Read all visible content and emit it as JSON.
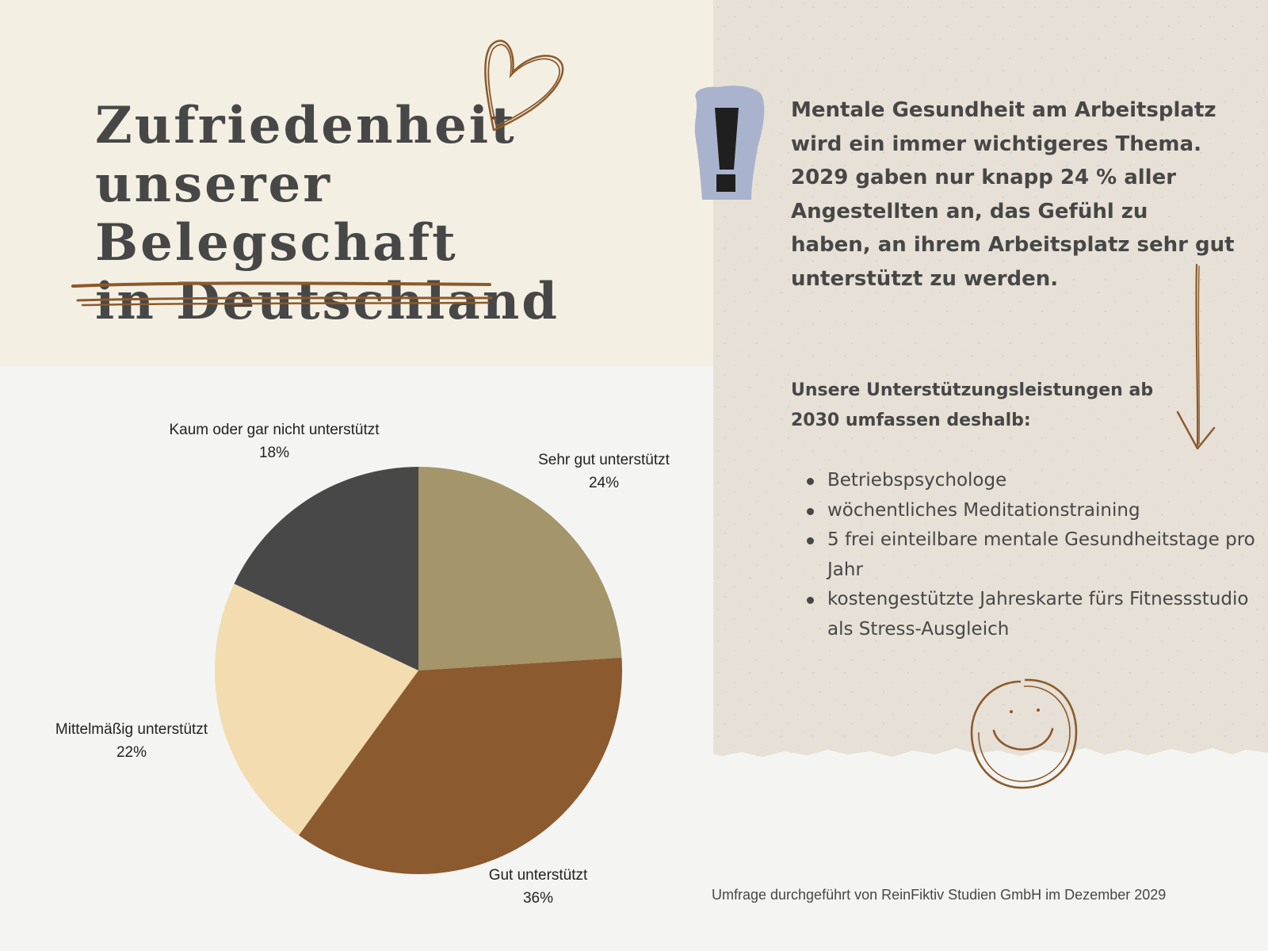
{
  "header": {
    "title": "Zufriedenheit\nunserer Belegschaft\nin Deutschland"
  },
  "intro": {
    "text": "Mentale Gesundheit am Arbeitsplatz wird ein immer wichtigeres Thema. 2029 gaben nur knapp 24 % aller Angestellten an, das Gefühl zu haben, an ihrem Arbeitsplatz sehr gut unterstützt zu werden."
  },
  "support": {
    "heading": "Unsere Unterstützungsleistungen ab 2030 umfassen deshalb:",
    "items": [
      "Betriebspsychologe",
      "wöchentliches Meditationstraining",
      "5 frei einteilbare mentale Gesundheitstage pro Jahr",
      "kostengestützte Jahreskarte fürs Fitnessstudio als Stress-Ausgleich"
    ]
  },
  "footnote": "Umfrage durchgeführt von ReinFiktiv Studien GmbH im Dezember 2029",
  "colors": {
    "accent_brown": "#8b5a2b",
    "text_dark": "#474747",
    "title_bg": "#f4efe3",
    "paper_bg": "#e6e0d6",
    "page_bg": "#f4f4f3",
    "exclamation_bg": "#a9b3cd"
  },
  "icons": [
    "heart-icon",
    "exclamation-icon",
    "arrow-down-icon",
    "smiley-icon"
  ],
  "chart_data": {
    "type": "pie",
    "title": "",
    "unit": "%",
    "slices": [
      {
        "label": "Sehr gut unterstützt",
        "value": 24,
        "value_label": "24%",
        "color": "#a4956a"
      },
      {
        "label": "Gut unterstützt",
        "value": 36,
        "value_label": "36%",
        "color": "#8b5a2e"
      },
      {
        "label": "Mittelmäßig unterstützt",
        "value": 22,
        "value_label": "22%",
        "color": "#f2dcb0"
      },
      {
        "label": "Kaum oder gar nicht unterstützt",
        "value": 18,
        "value_label": "18%",
        "color": "#484848"
      }
    ],
    "start_angle": "12 o'clock",
    "direction": "clockwise",
    "legend": "none"
  }
}
